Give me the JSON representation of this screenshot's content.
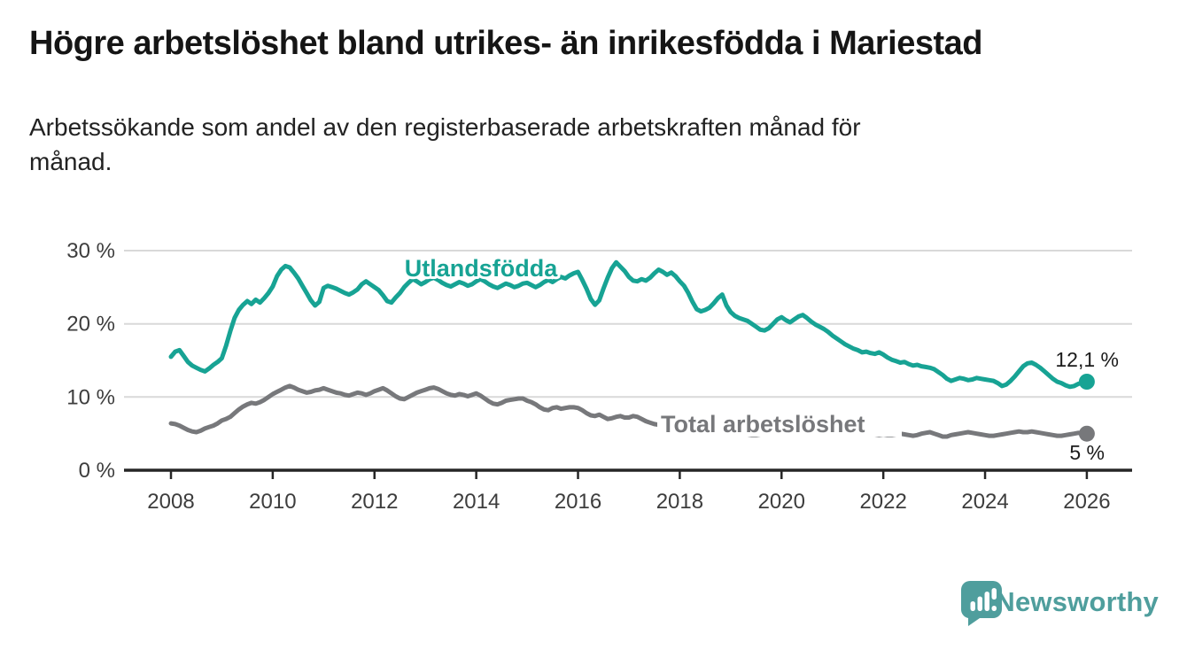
{
  "header": {
    "title": "Högre arbetslöshet bland utrikes- än inrikesfödda i Mariestad",
    "subtitle_line1": "Arbetssökande som andel av den registerbaserade arbetskraften månad för",
    "subtitle_line2": "månad."
  },
  "chart_data": {
    "type": "line",
    "title": "Högre arbetslöshet bland utrikes- än inrikesfödda i Mariestad",
    "subtitle": "Arbetssökande som andel av den registerbaserade arbetskraften månad för månad.",
    "frequency": "monthly",
    "grid": true,
    "x_axis": {
      "start_year": 2008,
      "end_year": 2026,
      "tick_labels": [
        "2008",
        "2010",
        "2012",
        "2014",
        "2016",
        "2018",
        "2020",
        "2022",
        "2024",
        "2026"
      ]
    },
    "y_axis": {
      "min": 0,
      "max": 30,
      "unit": "%",
      "tick_labels": [
        "0 %",
        "10 %",
        "20 %",
        "30 %"
      ]
    },
    "series": [
      {
        "id": "utlandsfodda",
        "name": "Utlandsfödda",
        "color": "#17a394",
        "end_value": 12.1,
        "end_label": "12,1 %",
        "values": [
          15.5,
          16.2,
          16.4,
          15.6,
          14.8,
          14.3,
          14.0,
          13.7,
          13.5,
          13.9,
          14.4,
          14.8,
          15.3,
          17.0,
          19.0,
          20.8,
          21.9,
          22.6,
          23.1,
          22.7,
          23.3,
          22.9,
          23.5,
          24.2,
          25.1,
          26.5,
          27.4,
          27.9,
          27.7,
          27.0,
          26.2,
          25.2,
          24.2,
          23.2,
          22.5,
          23.0,
          24.9,
          25.2,
          25.0,
          24.8,
          24.5,
          24.2,
          24.0,
          24.3,
          24.7,
          25.4,
          25.8,
          25.4,
          25.0,
          24.6,
          23.9,
          23.1,
          22.9,
          23.6,
          24.2,
          25.0,
          25.6,
          26.1,
          25.8,
          25.4,
          25.7,
          26.1,
          26.3,
          26.0,
          25.6,
          25.3,
          25.1,
          25.4,
          25.7,
          25.5,
          25.2,
          25.4,
          25.8,
          26.1,
          25.8,
          25.4,
          25.1,
          24.9,
          25.2,
          25.5,
          25.3,
          25.0,
          25.2,
          25.5,
          25.6,
          25.3,
          25.0,
          25.3,
          25.7,
          26.0,
          25.7,
          26.1,
          26.4,
          26.2,
          26.6,
          26.9,
          27.1,
          26.0,
          24.8,
          23.4,
          22.6,
          23.2,
          24.8,
          26.3,
          27.6,
          28.4,
          27.8,
          27.2,
          26.4,
          25.9,
          25.8,
          26.1,
          25.9,
          26.3,
          26.9,
          27.4,
          27.1,
          26.7,
          27.0,
          26.5,
          25.8,
          25.2,
          24.2,
          23.0,
          22.0,
          21.7,
          21.9,
          22.2,
          22.8,
          23.5,
          24.0,
          22.5,
          21.6,
          21.1,
          20.8,
          20.6,
          20.4,
          20.0,
          19.6,
          19.2,
          19.1,
          19.4,
          20.0,
          20.6,
          20.9,
          20.5,
          20.2,
          20.6,
          21.0,
          21.2,
          20.8,
          20.3,
          19.9,
          19.6,
          19.3,
          18.9,
          18.4,
          18.0,
          17.6,
          17.2,
          16.9,
          16.6,
          16.4,
          16.1,
          16.2,
          16.0,
          15.9,
          16.1,
          15.8,
          15.4,
          15.1,
          14.9,
          14.7,
          14.8,
          14.5,
          14.3,
          14.4,
          14.2,
          14.1,
          14.0,
          13.8,
          13.4,
          13.0,
          12.5,
          12.2,
          12.4,
          12.6,
          12.5,
          12.3,
          12.4,
          12.6,
          12.5,
          12.4,
          12.3,
          12.2,
          11.9,
          11.5,
          11.7,
          12.2,
          12.8,
          13.5,
          14.2,
          14.6,
          14.7,
          14.4,
          14.0,
          13.5,
          13.0,
          12.5,
          12.1,
          11.9,
          11.6,
          11.4,
          11.5,
          11.8,
          12.0,
          12.1
        ]
      },
      {
        "id": "total",
        "name": "Total arbetslöshet",
        "color": "#77787b",
        "end_value": 5.0,
        "end_label": "5 %",
        "values": [
          6.4,
          6.3,
          6.1,
          5.8,
          5.5,
          5.3,
          5.2,
          5.4,
          5.7,
          5.9,
          6.1,
          6.4,
          6.8,
          7.0,
          7.3,
          7.8,
          8.3,
          8.7,
          9.0,
          9.2,
          9.1,
          9.3,
          9.6,
          10.0,
          10.4,
          10.7,
          11.0,
          11.3,
          11.5,
          11.3,
          11.0,
          10.8,
          10.6,
          10.7,
          10.9,
          11.0,
          11.2,
          11.0,
          10.8,
          10.6,
          10.5,
          10.3,
          10.2,
          10.4,
          10.6,
          10.5,
          10.3,
          10.5,
          10.8,
          11.0,
          11.2,
          10.9,
          10.5,
          10.1,
          9.8,
          9.7,
          10.0,
          10.3,
          10.6,
          10.8,
          11.0,
          11.2,
          11.3,
          11.1,
          10.8,
          10.5,
          10.3,
          10.2,
          10.4,
          10.3,
          10.1,
          10.3,
          10.5,
          10.2,
          9.8,
          9.4,
          9.1,
          9.0,
          9.2,
          9.5,
          9.6,
          9.7,
          9.8,
          9.8,
          9.5,
          9.3,
          9.0,
          8.6,
          8.3,
          8.2,
          8.5,
          8.6,
          8.4,
          8.5,
          8.6,
          8.6,
          8.5,
          8.2,
          7.8,
          7.5,
          7.4,
          7.6,
          7.3,
          7.0,
          7.1,
          7.3,
          7.4,
          7.2,
          7.2,
          7.4,
          7.3,
          7.0,
          6.7,
          6.5,
          6.3,
          6.2,
          6.1,
          6.1,
          6.2,
          6.1,
          6.0,
          5.9,
          5.8,
          5.6,
          5.5,
          5.4,
          5.3,
          5.3,
          5.2,
          5.2,
          5.3,
          5.2,
          5.1,
          5.0,
          5.0,
          4.9,
          4.9,
          4.8,
          4.8,
          4.9,
          4.9,
          5.0,
          5.1,
          5.2,
          5.4,
          5.6,
          5.9,
          6.2,
          6.4,
          6.5,
          6.4,
          6.3,
          6.1,
          6.0,
          5.9,
          5.8,
          5.7,
          5.6,
          5.5,
          5.4,
          5.3,
          5.2,
          5.1,
          5.0,
          5.0,
          4.9,
          4.9,
          4.8,
          4.9,
          4.8,
          4.8,
          4.9,
          5.0,
          4.9,
          4.8,
          4.7,
          4.8,
          5.0,
          5.1,
          5.2,
          5.0,
          4.8,
          4.6,
          4.6,
          4.8,
          4.9,
          5.0,
          5.1,
          5.2,
          5.1,
          5.0,
          4.9,
          4.8,
          4.7,
          4.7,
          4.8,
          4.9,
          5.0,
          5.1,
          5.2,
          5.3,
          5.2,
          5.2,
          5.3,
          5.2,
          5.1,
          5.0,
          4.9,
          4.8,
          4.7,
          4.7,
          4.8,
          4.9,
          5.0,
          5.1,
          5.0,
          5.0
        ]
      }
    ]
  },
  "footer": {
    "brand": "Newsworthy",
    "brand_color": "#4f9e9d"
  }
}
